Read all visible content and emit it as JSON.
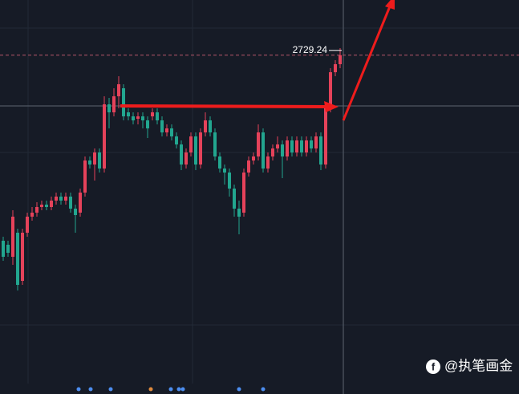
{
  "chart_data": {
    "type": "candlestick",
    "open": [
      2683,
      2682,
      2679,
      2685,
      2673,
      2685,
      2689,
      2690,
      2691.4,
      2692,
      2691.4,
      2693,
      2694,
      2693,
      2694,
      2691,
      2690,
      2695,
      2703,
      2702,
      2705,
      2701,
      2717,
      2715,
      2719,
      2721,
      2715,
      2714,
      2713.4,
      2714,
      2713,
      2714,
      2715,
      2713,
      2710,
      2711,
      2709,
      2707,
      2702,
      2705,
      2709,
      2702,
      2710,
      2713,
      2710,
      2704,
      2701,
      2700,
      2696,
      2691,
      2690,
      2700,
      2703,
      2704,
      2710,
      2701,
      2704,
      2706,
      2707,
      2704,
      2708,
      2705,
      2708,
      2705,
      2708,
      2706,
      2709,
      2702,
      2716,
      2725,
      2727
    ],
    "high": [
      2684,
      2683,
      2690.6,
      2686,
      2686,
      2690,
      2691.4,
      2692.6,
      2693,
      2693,
      2694,
      2695,
      2695,
      2695,
      2695,
      2692,
      2696,
      2704,
      2704,
      2706,
      2706,
      2719,
      2718.6,
      2721,
      2724,
      2722,
      2716,
      2715,
      2715,
      2715,
      2714,
      2716,
      2716,
      2714,
      2712,
      2712,
      2710,
      2708,
      2706,
      2710,
      2710,
      2711,
      2715,
      2714,
      2711,
      2705,
      2702,
      2701,
      2697,
      2693,
      2701,
      2704,
      2705,
      2712,
      2711,
      2705,
      2707,
      2709,
      2708,
      2709,
      2709,
      2709,
      2709,
      2709,
      2709,
      2710,
      2710,
      2717.4,
      2726,
      2728,
      2731
    ],
    "low": [
      2678,
      2679,
      2677,
      2670.6,
      2672,
      2684,
      2688,
      2689,
      2690.6,
      2690.6,
      2690.6,
      2692,
      2692,
      2692,
      2690,
      2685,
      2689,
      2694,
      2701,
      2698,
      2700,
      2700,
      2711,
      2714,
      2716,
      2713,
      2713,
      2712,
      2712,
      2711,
      2708.6,
      2713,
      2712,
      2709,
      2709,
      2708,
      2706,
      2700.6,
      2701,
      2704,
      2700.6,
      2701,
      2709,
      2709,
      2703,
      2700,
      2697,
      2694,
      2689,
      2684.6,
      2689,
      2699,
      2702,
      2703,
      2700,
      2700,
      2703,
      2705,
      2698.6,
      2703,
      2704,
      2704,
      2704,
      2704,
      2705,
      2705,
      2700.6,
      2701,
      2715,
      2724,
      2726
    ],
    "close": [
      2679,
      2680,
      2689,
      2672,
      2685,
      2689,
      2690,
      2691.4,
      2692,
      2691.4,
      2693,
      2694,
      2693,
      2694,
      2691,
      2689.4,
      2695,
      2703,
      2702,
      2705,
      2701,
      2717,
      2715,
      2719,
      2722,
      2714,
      2714,
      2713,
      2714,
      2713,
      2711,
      2715,
      2713,
      2710,
      2711,
      2709,
      2707,
      2702,
      2705,
      2709,
      2702,
      2710,
      2713,
      2710,
      2704,
      2701,
      2700,
      2696,
      2691,
      2689,
      2700,
      2703,
      2704,
      2710,
      2701,
      2704,
      2706,
      2707,
      2704,
      2708,
      2705,
      2708,
      2705,
      2708,
      2706,
      2709,
      2702,
      2716,
      2725,
      2727,
      2729.24
    ],
    "ylim": [
      2647,
      2743
    ],
    "up_color": "#e5425a",
    "down_color": "#22a68f",
    "last_price": 2729.24
  },
  "watermark": "@执笔画金"
}
